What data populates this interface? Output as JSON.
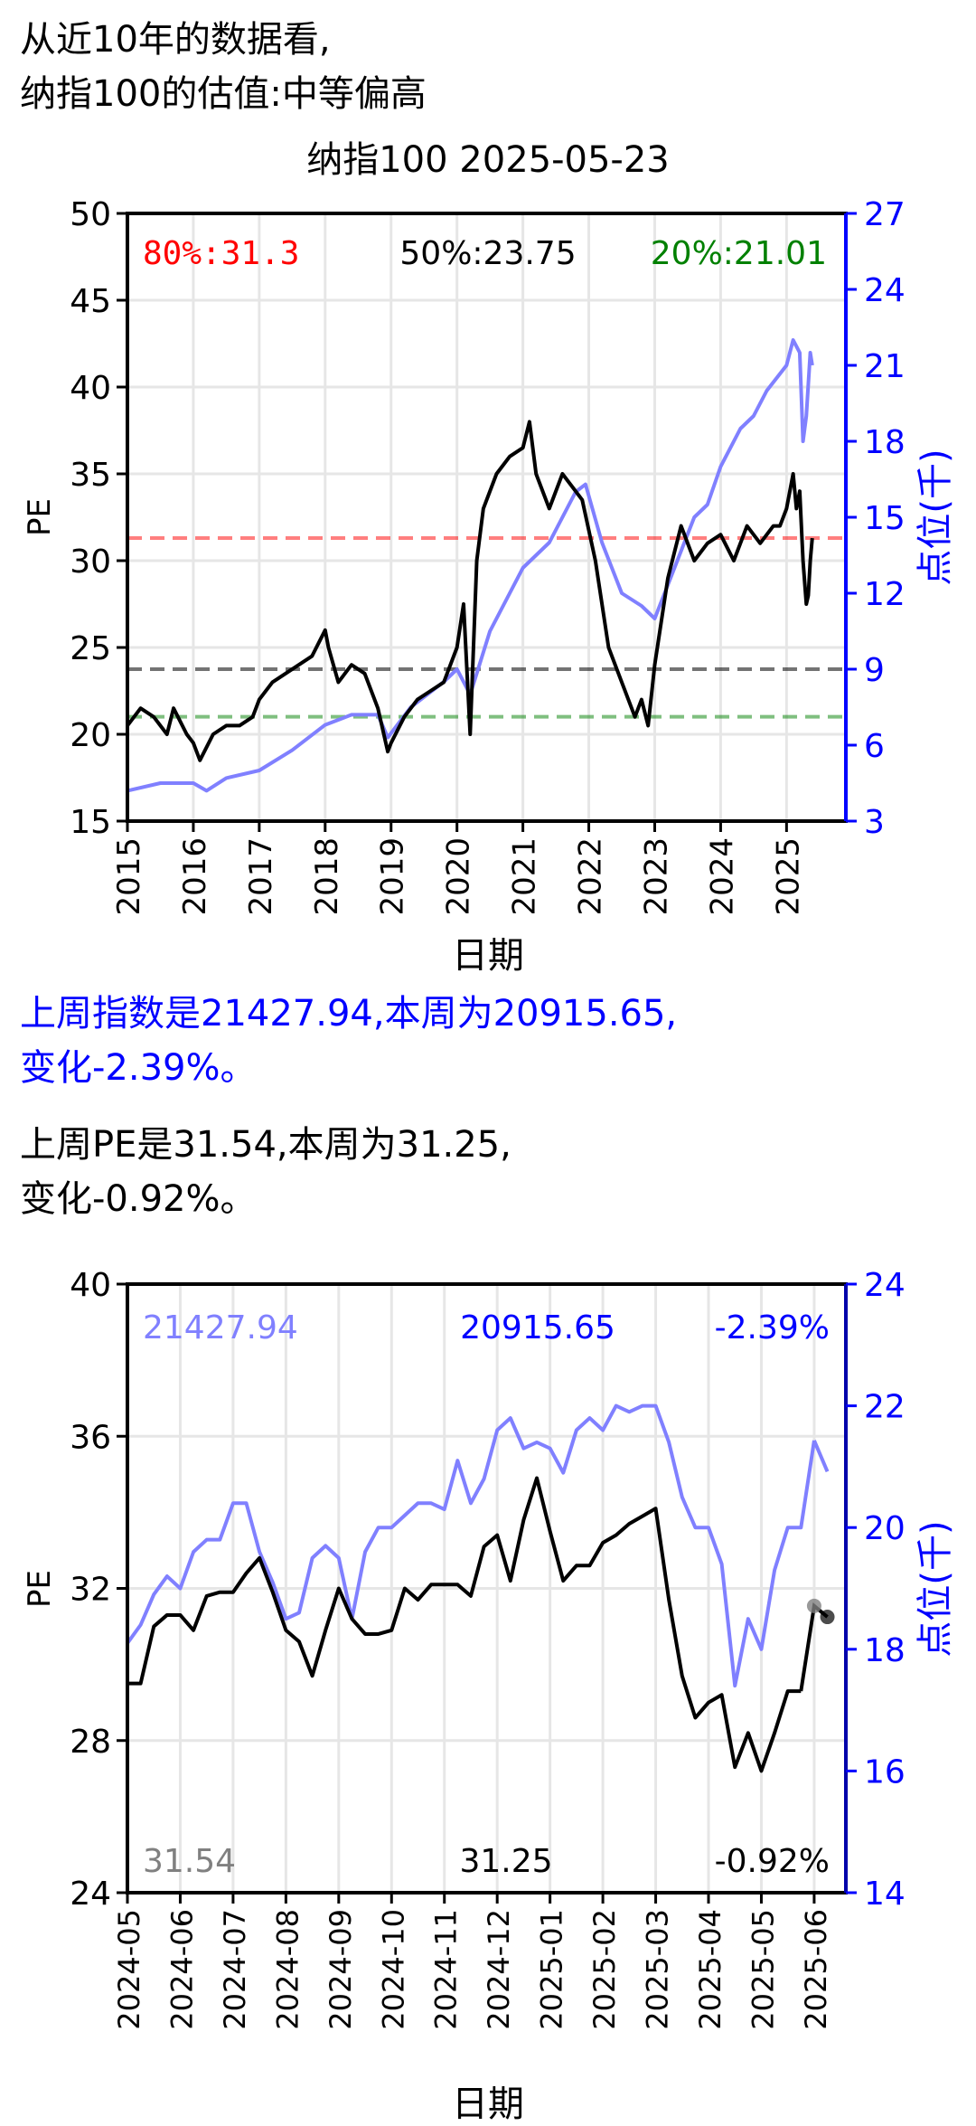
{
  "header": {
    "line1": "从近10年的数据看,",
    "line2": "纳指100的估值:中等偏高"
  },
  "summary": {
    "index_line1": "上周指数是21427.94,本周为20915.65,",
    "index_line2": "变化-2.39%。",
    "pe_line1": "上周PE是31.54,本周为31.25,",
    "pe_line2": "变化-0.92%。"
  },
  "colors": {
    "pe": "#000000",
    "index": "#8080ff",
    "axis_right": "#0000ff",
    "p80": "#ff0000",
    "p50": "#000000",
    "p20": "#008000",
    "grid": "#e6e6e6"
  },
  "chart_data": [
    {
      "type": "line",
      "title": "纳指100 2025-05-23",
      "xlabel": "日期",
      "ylabel": "PE",
      "y2label": "点位(千)",
      "xticks": [
        "2015",
        "2016",
        "2017",
        "2018",
        "2019",
        "2020",
        "2021",
        "2022",
        "2023",
        "2024",
        "2025"
      ],
      "xlim": [
        2015.0,
        2025.9
      ],
      "ylim": [
        15,
        50
      ],
      "yticks": [
        15,
        20,
        25,
        30,
        35,
        40,
        45,
        50
      ],
      "y2lim": [
        3,
        27
      ],
      "y2ticks": [
        3,
        6,
        9,
        12,
        15,
        18,
        21,
        24,
        27
      ],
      "grid": true,
      "annotations": {
        "p80": "80%:31.3",
        "p50": "50%:23.75",
        "p20": "20%:21.01"
      },
      "reference_lines": [
        {
          "label": "80%",
          "value": 31.3
        },
        {
          "label": "50%",
          "value": 23.75
        },
        {
          "label": "20%",
          "value": 21.01
        }
      ],
      "series": [
        {
          "axis": "left",
          "x": [
            2015.0,
            2015.2,
            2015.4,
            2015.6,
            2015.7,
            2015.9,
            2016.0,
            2016.1,
            2016.3,
            2016.5,
            2016.7,
            2016.9,
            2017.0,
            2017.2,
            2017.4,
            2017.6,
            2017.8,
            2018.0,
            2018.05,
            2018.2,
            2018.4,
            2018.6,
            2018.8,
            2018.95,
            2019.0,
            2019.2,
            2019.4,
            2019.6,
            2019.8,
            2020.0,
            2020.1,
            2020.2,
            2020.3,
            2020.4,
            2020.6,
            2020.8,
            2021.0,
            2021.1,
            2021.2,
            2021.4,
            2021.6,
            2021.8,
            2021.9,
            2022.1,
            2022.3,
            2022.5,
            2022.7,
            2022.8,
            2022.9,
            2023.0,
            2023.2,
            2023.4,
            2023.6,
            2023.8,
            2024.0,
            2024.2,
            2024.4,
            2024.6,
            2024.8,
            2024.9,
            2025.0,
            2025.1,
            2025.15,
            2025.2,
            2025.25,
            2025.3,
            2025.33,
            2025.36,
            2025.39
          ],
          "values": [
            20.5,
            21.5,
            21.0,
            20.0,
            21.5,
            20.0,
            19.5,
            18.5,
            20.0,
            20.5,
            20.5,
            21.0,
            22.0,
            23.0,
            23.5,
            24.0,
            24.5,
            26.0,
            25.0,
            23.0,
            24.0,
            23.5,
            21.5,
            19.0,
            19.5,
            21.0,
            22.0,
            22.5,
            23.0,
            25.0,
            27.5,
            20.0,
            30.0,
            33.0,
            35.0,
            36.0,
            36.5,
            38.0,
            35.0,
            33.0,
            35.0,
            34.0,
            33.5,
            30.0,
            25.0,
            23.0,
            21.0,
            22.0,
            20.5,
            24.0,
            29.0,
            32.0,
            30.0,
            31.0,
            31.5,
            30.0,
            32.0,
            31.0,
            32.0,
            32.0,
            33.0,
            35.0,
            33.0,
            34.0,
            30.0,
            27.5,
            28.0,
            30.0,
            31.3
          ]
        },
        {
          "axis": "right",
          "x": [
            2015.0,
            2015.5,
            2016.0,
            2016.2,
            2016.5,
            2017.0,
            2017.5,
            2018.0,
            2018.4,
            2018.8,
            2018.95,
            2019.3,
            2019.8,
            2020.0,
            2020.2,
            2020.5,
            2020.8,
            2021.0,
            2021.4,
            2021.8,
            2021.95,
            2022.2,
            2022.5,
            2022.8,
            2023.0,
            2023.3,
            2023.6,
            2023.8,
            2024.0,
            2024.3,
            2024.5,
            2024.7,
            2025.0,
            2025.1,
            2025.2,
            2025.25,
            2025.3,
            2025.36,
            2025.39
          ],
          "values": [
            4.2,
            4.5,
            4.5,
            4.2,
            4.7,
            5.0,
            5.8,
            6.8,
            7.2,
            7.2,
            6.3,
            7.5,
            8.5,
            9.0,
            8.0,
            10.5,
            12.0,
            13.0,
            14.0,
            16.0,
            16.3,
            14.0,
            12.0,
            11.5,
            11.0,
            13.0,
            15.0,
            15.5,
            17.0,
            18.5,
            19.0,
            20.0,
            21.0,
            22.0,
            21.5,
            18.0,
            19.0,
            21.5,
            21.0
          ]
        }
      ]
    },
    {
      "type": "line",
      "xlabel": "日期",
      "ylabel": "PE",
      "y2label": "点位(千)",
      "xticks": [
        "2024-05",
        "2024-06",
        "2024-07",
        "2024-08",
        "2024-09",
        "2024-10",
        "2024-11",
        "2024-12",
        "2025-01",
        "2025-02",
        "2025-03",
        "2025-04",
        "2025-05",
        "2025-06"
      ],
      "xlim": [
        0,
        13.6
      ],
      "ylim": [
        24,
        40
      ],
      "yticks": [
        24,
        28,
        32,
        36,
        40
      ],
      "y2lim": [
        14,
        24
      ],
      "y2ticks": [
        14,
        16,
        18,
        20,
        22,
        24
      ],
      "grid": true,
      "annotations": {
        "index_prev": "21427.94",
        "index_curr": "20915.65",
        "index_change": "-2.39%",
        "pe_prev": "31.54",
        "pe_curr": "31.25",
        "pe_change": "-0.92%"
      },
      "series": [
        {
          "axis": "left",
          "x": [
            0,
            0.25,
            0.5,
            0.75,
            1.0,
            1.25,
            1.5,
            1.75,
            2.0,
            2.25,
            2.5,
            2.75,
            3.0,
            3.25,
            3.5,
            3.75,
            4.0,
            4.25,
            4.5,
            4.75,
            5.0,
            5.25,
            5.5,
            5.75,
            6.0,
            6.25,
            6.5,
            6.75,
            7.0,
            7.25,
            7.5,
            7.75,
            8.0,
            8.25,
            8.5,
            8.75,
            9.0,
            9.25,
            9.5,
            9.75,
            10.0,
            10.25,
            10.5,
            10.75,
            11.0,
            11.25,
            11.5,
            11.75,
            12.0,
            12.25,
            12.5,
            12.75
          ],
          "values": [
            29.5,
            29.5,
            31.0,
            31.3,
            31.3,
            30.9,
            31.8,
            31.9,
            31.9,
            32.4,
            32.8,
            31.9,
            30.9,
            30.6,
            29.7,
            30.9,
            32.0,
            31.2,
            30.8,
            30.8,
            30.9,
            32.0,
            31.7,
            32.1,
            32.1,
            32.1,
            31.8,
            33.1,
            33.4,
            32.2,
            33.8,
            34.9,
            33.5,
            32.2,
            32.6,
            32.6,
            33.2,
            33.4,
            33.7,
            33.9,
            34.1,
            31.7,
            29.7,
            28.6,
            29.0,
            29.2,
            27.3,
            28.2,
            27.2,
            28.2,
            29.3,
            29.3
          ],
          "last_two": [
            31.54,
            31.25
          ]
        },
        {
          "axis": "right",
          "x": [
            0,
            0.25,
            0.5,
            0.75,
            1.0,
            1.25,
            1.5,
            1.75,
            2.0,
            2.25,
            2.5,
            2.75,
            3.0,
            3.25,
            3.5,
            3.75,
            4.0,
            4.25,
            4.5,
            4.75,
            5.0,
            5.25,
            5.5,
            5.75,
            6.0,
            6.25,
            6.5,
            6.75,
            7.0,
            7.25,
            7.5,
            7.75,
            8.0,
            8.25,
            8.5,
            8.75,
            9.0,
            9.25,
            9.5,
            9.75,
            10.0,
            10.25,
            10.5,
            10.75,
            11.0,
            11.25,
            11.5,
            11.75,
            12.0,
            12.25,
            12.5,
            12.75,
            13.0
          ],
          "values": [
            18.1,
            18.4,
            18.9,
            19.2,
            19.0,
            19.6,
            19.8,
            19.8,
            20.4,
            20.4,
            19.6,
            19.1,
            18.5,
            18.6,
            19.5,
            19.7,
            19.5,
            18.5,
            19.6,
            20.0,
            20.0,
            20.2,
            20.4,
            20.4,
            20.3,
            21.1,
            20.4,
            20.8,
            21.6,
            21.8,
            21.3,
            21.4,
            21.3,
            20.9,
            21.6,
            21.8,
            21.6,
            22.0,
            21.9,
            22.0,
            22.0,
            21.4,
            20.5,
            20.0,
            20.0,
            19.4,
            17.4,
            18.5,
            18.0,
            19.3,
            20.0,
            20.0,
            21.43
          ],
          "last_two": [
            21.43,
            20.92
          ]
        }
      ]
    }
  ]
}
